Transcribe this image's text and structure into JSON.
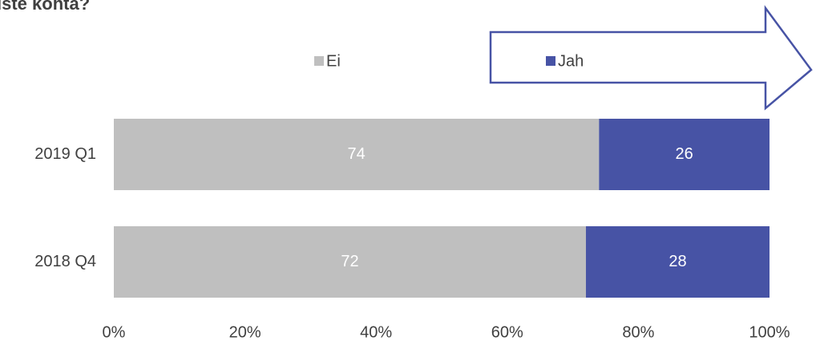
{
  "chart_data": {
    "type": "stacked_barh",
    "title": "iste kohta?",
    "categories": [
      "2019 Q1",
      "2018 Q4"
    ],
    "series": [
      {
        "name": "Ei",
        "color": "#bfbfbf",
        "values": [
          74,
          72
        ]
      },
      {
        "name": "Jah",
        "color": "#4753a5",
        "values": [
          26,
          28
        ]
      }
    ],
    "xlim": [
      0,
      100
    ],
    "xticks": [
      {
        "value": 0,
        "label": "0%"
      },
      {
        "value": 20,
        "label": "20%"
      },
      {
        "value": 40,
        "label": "40%"
      },
      {
        "value": 60,
        "label": "60%"
      },
      {
        "value": 80,
        "label": "80%"
      },
      {
        "value": 100,
        "label": "100%"
      }
    ],
    "legend": "top"
  }
}
